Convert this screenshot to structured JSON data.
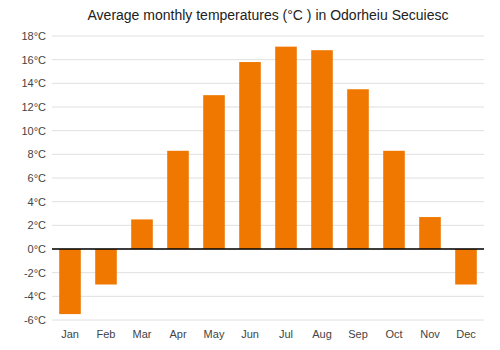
{
  "chart_data": {
    "type": "bar",
    "title": "Average monthly temperatures (°C ) in Odorheiu Secuiesc",
    "categories": [
      "Jan",
      "Feb",
      "Mar",
      "Apr",
      "May",
      "Jun",
      "Jul",
      "Aug",
      "Sep",
      "Oct",
      "Nov",
      "Dec"
    ],
    "values": [
      -5.5,
      -3.0,
      2.5,
      8.3,
      13.0,
      15.8,
      17.1,
      16.8,
      13.5,
      8.3,
      2.7,
      -3.0
    ],
    "color": "#F07800",
    "ylim": [
      -6,
      18
    ],
    "yticks": [
      {
        "value": -6,
        "label": "-6°C"
      },
      {
        "value": -4,
        "label": "-4°C"
      },
      {
        "value": -2,
        "label": "-2°C"
      },
      {
        "value": 0,
        "label": "0°C"
      },
      {
        "value": 2,
        "label": "2°C"
      },
      {
        "value": 4,
        "label": "4°C"
      },
      {
        "value": 6,
        "label": "6°C"
      },
      {
        "value": 8,
        "label": "8°C"
      },
      {
        "value": 10,
        "label": "10°C"
      },
      {
        "value": 12,
        "label": "12°C"
      },
      {
        "value": 14,
        "label": "14°C"
      },
      {
        "value": 16,
        "label": "16°C"
      },
      {
        "value": 18,
        "label": "18°C"
      }
    ],
    "grid": true
  }
}
